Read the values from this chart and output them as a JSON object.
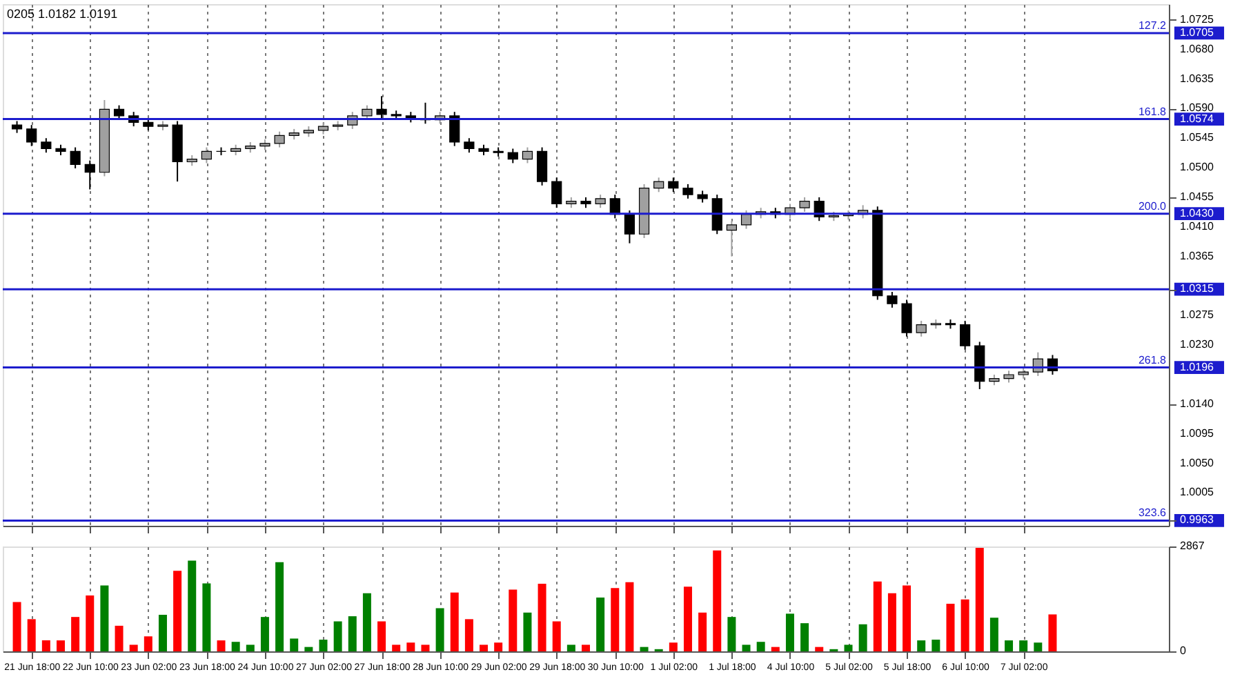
{
  "chart_data": [
    {
      "type": "candlestick",
      "categories": [
        null,
        "21 Jun 18:00",
        null,
        null,
        null,
        "22 Jun 10:00",
        null,
        null,
        null,
        "23 Jun 02:00",
        null,
        null,
        null,
        "23 Jun 18:00",
        null,
        null,
        null,
        "24 Jun 10:00",
        null,
        null,
        null,
        "27 Jun 02:00",
        null,
        null,
        null,
        "27 Jun 18:00",
        null,
        null,
        null,
        "28 Jun 10:00",
        null,
        null,
        null,
        "29 Jun 02:00",
        null,
        null,
        null,
        "29 Jun 18:00",
        null,
        null,
        null,
        "30 Jun 10:00",
        null,
        null,
        null,
        "1 Jul 02:00",
        null,
        null,
        null,
        "1 Jul 18:00",
        null,
        null,
        null,
        "4 Jul 10:00",
        null,
        null,
        null,
        "5 Jul 02:00",
        null,
        null,
        null,
        "5 Jul 18:00",
        null,
        null,
        null,
        "6 Jul 10:00",
        null,
        null,
        null,
        "7 Jul 02:00",
        null,
        null,
        null,
        null,
        null,
        null,
        null,
        null,
        null
      ],
      "ohlc": [
        [
          1.0565,
          1.0571,
          1.0553,
          1.0559
        ],
        [
          1.0559,
          1.0565,
          1.0533,
          1.0539
        ],
        [
          1.0539,
          1.0545,
          1.0523,
          1.0529
        ],
        [
          1.0529,
          1.0535,
          1.0519,
          1.0525
        ],
        [
          1.0525,
          1.0531,
          1.0499,
          1.0505
        ],
        [
          1.0505,
          1.0511,
          1.0467,
          1.0493
        ],
        [
          1.0493,
          1.0603,
          1.0487,
          1.0589
        ],
        [
          1.0589,
          1.0595,
          1.0573,
          1.0579
        ],
        [
          1.0579,
          1.0585,
          1.0563,
          1.0569
        ],
        [
          1.0569,
          1.0575,
          1.0557,
          1.0563
        ],
        [
          1.0563,
          1.0571,
          1.0557,
          1.0565
        ],
        [
          1.0565,
          1.0571,
          1.0479,
          1.0509
        ],
        [
          1.0509,
          1.0519,
          1.0503,
          1.0513
        ],
        [
          1.0513,
          1.0531,
          1.0507,
          1.0525
        ],
        [
          1.0525,
          1.0531,
          1.0519,
          1.0525
        ],
        [
          1.0525,
          1.0535,
          1.0519,
          1.0529
        ],
        [
          1.0529,
          1.0539,
          1.0523,
          1.0533
        ],
        [
          1.0533,
          1.0543,
          1.0527,
          1.0537
        ],
        [
          1.0537,
          1.0555,
          1.0531,
          1.0549
        ],
        [
          1.0549,
          1.0559,
          1.0543,
          1.0553
        ],
        [
          1.0553,
          1.0563,
          1.0547,
          1.0557
        ],
        [
          1.0557,
          1.0569,
          1.0551,
          1.0563
        ],
        [
          1.0563,
          1.0571,
          1.0557,
          1.0565
        ],
        [
          1.0565,
          1.0585,
          1.0559,
          1.0579
        ],
        [
          1.0579,
          1.0595,
          1.0573,
          1.0589
        ],
        [
          1.0589,
          1.0609,
          1.0575,
          1.0581
        ],
        [
          1.0581,
          1.0587,
          1.0573,
          1.0579
        ],
        [
          1.0579,
          1.0585,
          1.0569,
          1.0575
        ],
        [
          1.0575,
          1.0599,
          1.0567,
          1.0573
        ],
        [
          1.0573,
          1.0585,
          1.0567,
          1.0579
        ],
        [
          1.0579,
          1.0585,
          1.0533,
          1.0539
        ],
        [
          1.0539,
          1.0545,
          1.0523,
          1.0529
        ],
        [
          1.0529,
          1.0535,
          1.0519,
          1.0525
        ],
        [
          1.0525,
          1.0531,
          1.0517,
          1.0523
        ],
        [
          1.0523,
          1.0529,
          1.0507,
          1.0513
        ],
        [
          1.0513,
          1.0531,
          1.0507,
          1.0525
        ],
        [
          1.0525,
          1.0531,
          1.0473,
          1.0479
        ],
        [
          1.0479,
          1.0485,
          1.0439,
          1.0445
        ],
        [
          1.0445,
          1.0455,
          1.0439,
          1.0449
        ],
        [
          1.0449,
          1.0455,
          1.0439,
          1.0445
        ],
        [
          1.0445,
          1.0459,
          1.0439,
          1.0453
        ],
        [
          1.0453,
          1.0459,
          1.0423,
          1.0429
        ],
        [
          1.0429,
          1.0435,
          1.0385,
          1.0399
        ],
        [
          1.0399,
          1.0475,
          1.0393,
          1.0469
        ],
        [
          1.0469,
          1.0485,
          1.0463,
          1.0479
        ],
        [
          1.0479,
          1.0485,
          1.0463,
          1.0469
        ],
        [
          1.0469,
          1.0475,
          1.0453,
          1.0459
        ],
        [
          1.0459,
          1.0465,
          1.0447,
          1.0453
        ],
        [
          1.0453,
          1.0459,
          1.0399,
          1.0405
        ],
        [
          1.0405,
          1.0419,
          1.0365,
          1.0413
        ],
        [
          1.0413,
          1.0435,
          1.0407,
          1.0429
        ],
        [
          1.0429,
          1.0439,
          1.0423,
          1.0433
        ],
        [
          1.0433,
          1.0439,
          1.0423,
          1.0429
        ],
        [
          1.0429,
          1.0445,
          1.0423,
          1.0439
        ],
        [
          1.0439,
          1.0455,
          1.0433,
          1.0449
        ],
        [
          1.0449,
          1.0455,
          1.0419,
          1.0425
        ],
        [
          1.0425,
          1.0433,
          1.0419,
          1.0427
        ],
        [
          1.0427,
          1.0435,
          1.0421,
          1.0429
        ],
        [
          1.0429,
          1.0443,
          1.0423,
          1.0435
        ],
        [
          1.0435,
          1.0441,
          1.0299,
          1.0305
        ],
        [
          1.0305,
          1.0311,
          1.0287,
          1.0293
        ],
        [
          1.0293,
          1.0299,
          1.0243,
          1.0249
        ],
        [
          1.0249,
          1.0267,
          1.0243,
          1.0261
        ],
        [
          1.0261,
          1.0269,
          1.0255,
          1.0263
        ],
        [
          1.0263,
          1.0269,
          1.0255,
          1.0261
        ],
        [
          1.0261,
          1.0267,
          1.0223,
          1.0229
        ],
        [
          1.0229,
          1.0235,
          1.0163,
          1.0175
        ],
        [
          1.0175,
          1.0185,
          1.0169,
          1.0179
        ],
        [
          1.0179,
          1.0191,
          1.0173,
          1.0185
        ],
        [
          1.0185,
          1.0195,
          1.0179,
          1.0189
        ],
        [
          1.0189,
          1.0219,
          1.0183,
          1.0209
        ],
        [
          1.0209,
          1.0215,
          1.0185,
          1.0191
        ],
        null,
        null,
        null,
        null,
        null,
        null,
        null
      ],
      "colors": [
        "#000000",
        "#000000",
        "#000000",
        "#000000",
        "#000000",
        "#000000",
        "#a0a0a0",
        "#000000",
        "#000000",
        "#000000",
        "#a0a0a0",
        "#000000",
        "#a0a0a0",
        "#a0a0a0",
        "#000000",
        "#a0a0a0",
        "#a0a0a0",
        "#a0a0a0",
        "#a0a0a0",
        "#a0a0a0",
        "#a0a0a0",
        "#a0a0a0",
        "#a0a0a0",
        "#a0a0a0",
        "#a0a0a0",
        "#000000",
        "#000000",
        "#000000",
        "#000000",
        "#a0a0a0",
        "#000000",
        "#000000",
        "#000000",
        "#000000",
        "#000000",
        "#a0a0a0",
        "#000000",
        "#000000",
        "#a0a0a0",
        "#000000",
        "#a0a0a0",
        "#000000",
        "#000000",
        "#a0a0a0",
        "#a0a0a0",
        "#000000",
        "#000000",
        "#000000",
        "#000000",
        "#a0a0a0",
        "#a0a0a0",
        "#a0a0a0",
        "#000000",
        "#a0a0a0",
        "#a0a0a0",
        "#000000",
        "#a0a0a0",
        "#a0a0a0",
        "#a0a0a0",
        "#000000",
        "#000000",
        "#000000",
        "#a0a0a0",
        "#a0a0a0",
        "#000000",
        "#000000",
        "#000000",
        "#a0a0a0",
        "#a0a0a0",
        "#a0a0a0",
        "#a0a0a0",
        "#000000",
        null,
        null,
        null,
        null,
        null,
        null,
        null
      ],
      "ylim": [
        0.9955,
        1.0749
      ],
      "yticks": [
        1.0725,
        1.0705,
        {
          "value": 1.068,
          "label": "1.0680"
        },
        1.0635,
        {
          "value": 1.059,
          "label": "1.0590"
        },
        1.0574,
        1.0545,
        {
          "value": 1.05,
          "label": "1.0500"
        },
        1.0455,
        {
          "value": 1.043,
          "label": "1.0430"
        },
        {
          "value": 1.041,
          "label": "1.0410"
        },
        1.0365,
        1.0315,
        1.0275,
        {
          "value": 1.023,
          "label": "1.0230"
        },
        1.0196,
        {
          "value": 1.014,
          "label": "1.0140"
        },
        1.0095,
        {
          "value": 1.005,
          "label": "1.0050"
        },
        1.0005,
        0.9963
      ],
      "ref_lines": [
        {
          "axis": "y",
          "value": 1.0705,
          "color": "#1c1ccd"
        },
        {
          "axis": "y",
          "value": 1.0574,
          "color": "#1c1ccd"
        },
        {
          "axis": "y",
          "value": 1.043,
          "color": "#1c1ccd"
        },
        {
          "axis": "y",
          "value": 1.0315,
          "color": "#1c1ccd"
        },
        {
          "axis": "y",
          "value": 1.0196,
          "color": "#1c1ccd"
        },
        {
          "axis": "y",
          "value": 0.9963,
          "color": "#1c1ccd"
        }
      ],
      "annotations": [
        "0205 1.0182 1.0191",
        {
          "text": "127.2",
          "y": 1.0705
        },
        {
          "text": "161.8",
          "y": 1.0574
        },
        {
          "text": "200.0",
          "y": 1.043
        },
        {
          "text": "261.8",
          "y": 1.0196
        },
        {
          "text": "323.6",
          "y": 0.9963
        }
      ],
      "grid": "x",
      "tick_labels": "y"
    },
    {
      "type": "bar",
      "categories": [
        null,
        "21 Jun 18:00",
        null,
        null,
        null,
        "22 Jun 10:00",
        null,
        null,
        null,
        "23 Jun 02:00",
        null,
        null,
        null,
        "23 Jun 18:00",
        null,
        null,
        null,
        "24 Jun 10:00",
        null,
        null,
        null,
        "27 Jun 02:00",
        null,
        null,
        null,
        "27 Jun 18:00",
        null,
        null,
        null,
        "28 Jun 10:00",
        null,
        null,
        null,
        "29 Jun 02:00",
        null,
        null,
        null,
        "29 Jun 18:00",
        null,
        null,
        null,
        "30 Jun 10:00",
        null,
        null,
        null,
        "1 Jul 02:00",
        null,
        null,
        null,
        "1 Jul 18:00",
        null,
        null,
        null,
        "4 Jul 10:00",
        null,
        null,
        null,
        "5 Jul 02:00",
        null,
        null,
        null,
        "5 Jul 18:00",
        null,
        null,
        null,
        "6 Jul 10:00",
        null,
        null,
        null,
        "7 Jul 02:00",
        null,
        null,
        null,
        null,
        null,
        null,
        null,
        null,
        null
      ],
      "values": [
        1350,
        880,
        300,
        300,
        940,
        1530,
        1800,
        700,
        180,
        410,
        1000,
        2200,
        2480,
        1860,
        300,
        260,
        180,
        940,
        2440,
        350,
        120,
        320,
        820,
        960,
        1590,
        820,
        180,
        240,
        180,
        1180,
        1610,
        880,
        180,
        240,
        1690,
        1060,
        1850,
        820,
        180,
        180,
        1470,
        1730,
        1890,
        120,
        60,
        240,
        1770,
        1060,
        2760,
        940,
        180,
        260,
        120,
        1030,
        770,
        120,
        60,
        180,
        740,
        1910,
        1590,
        1800,
        300,
        320,
        1300,
        1420,
        2830,
        920,
        300,
        300,
        240,
        1010,
        null,
        null,
        null,
        null,
        null,
        null,
        null
      ],
      "colors": [
        "#ff0000",
        "#ff0000",
        "#ff0000",
        "#ff0000",
        "#ff0000",
        "#ff0000",
        "#008000",
        "#ff0000",
        "#ff0000",
        "#ff0000",
        "#008000",
        "#ff0000",
        "#008000",
        "#008000",
        "#ff0000",
        "#008000",
        "#008000",
        "#008000",
        "#008000",
        "#008000",
        "#008000",
        "#008000",
        "#008000",
        "#008000",
        "#008000",
        "#ff0000",
        "#ff0000",
        "#ff0000",
        "#ff0000",
        "#008000",
        "#ff0000",
        "#ff0000",
        "#ff0000",
        "#ff0000",
        "#ff0000",
        "#008000",
        "#ff0000",
        "#ff0000",
        "#008000",
        "#ff0000",
        "#008000",
        "#ff0000",
        "#ff0000",
        "#008000",
        "#008000",
        "#ff0000",
        "#ff0000",
        "#ff0000",
        "#ff0000",
        "#008000",
        "#008000",
        "#008000",
        "#ff0000",
        "#008000",
        "#008000",
        "#ff0000",
        "#008000",
        "#008000",
        "#008000",
        "#ff0000",
        "#ff0000",
        "#ff0000",
        "#008000",
        "#008000",
        "#ff0000",
        "#ff0000",
        "#ff0000",
        "#008000",
        "#008000",
        "#008000",
        "#008000",
        "#ff0000",
        null,
        null,
        null,
        null,
        null,
        null,
        null
      ],
      "ylim": [
        0,
        2867
      ],
      "yticks": [
        0,
        2867
      ],
      "grid": "x"
    }
  ]
}
